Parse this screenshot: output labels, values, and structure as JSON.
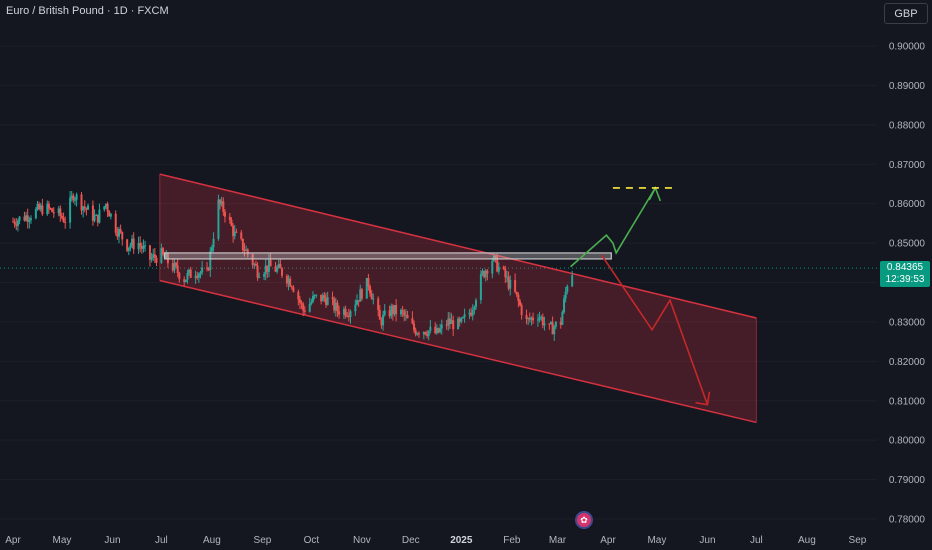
{
  "header": {
    "title": "Euro / British Pound · 1D · FXCM",
    "currency_button": "GBP"
  },
  "price_badge": {
    "price": "0.84365",
    "countdown": "12:39:53",
    "color": "#089981"
  },
  "event_icon": {
    "icon": "economic-event-icon"
  },
  "colors": {
    "background": "#141720",
    "up": "#26a69a",
    "down": "#ef5350",
    "channel": "#f23645",
    "zone": "#c8c8c8",
    "projection_up": "#4caf50",
    "projection_down": "#c62828",
    "target": "#ffeb3b"
  },
  "chart_data": {
    "type": "candlestick",
    "symbol": "Euro / British Pound",
    "interval": "1D",
    "source": "FXCM",
    "y_axis": {
      "min": 0.78,
      "max": 0.9,
      "ticks": [
        "0.90000",
        "0.89000",
        "0.88000",
        "0.87000",
        "0.86000",
        "0.85000",
        "0.84000",
        "0.83000",
        "0.82000",
        "0.81000",
        "0.80000",
        "0.79000",
        "0.78000"
      ],
      "side": "right"
    },
    "x_axis": {
      "ticks": [
        "Apr",
        "May",
        "Jun",
        "Jul",
        "Aug",
        "Sep",
        "Oct",
        "Nov",
        "Dec",
        "2025",
        "Feb",
        "Mar",
        "Apr",
        "May",
        "Jun",
        "Jul",
        "Aug",
        "Sep"
      ],
      "bold": [
        "2025"
      ]
    },
    "last_price": 0.84365,
    "closes": [
      {
        "d": "2024-04-01",
        "v": 0.8555
      },
      {
        "d": "2024-04-10",
        "v": 0.857
      },
      {
        "d": "2024-04-20",
        "v": 0.859
      },
      {
        "d": "2024-04-28",
        "v": 0.8575
      },
      {
        "d": "2024-05-03",
        "v": 0.856
      },
      {
        "d": "2024-05-08",
        "v": 0.8625
      },
      {
        "d": "2024-05-15",
        "v": 0.859
      },
      {
        "d": "2024-05-22",
        "v": 0.856
      },
      {
        "d": "2024-05-28",
        "v": 0.86
      },
      {
        "d": "2024-06-03",
        "v": 0.854
      },
      {
        "d": "2024-06-10",
        "v": 0.8495
      },
      {
        "d": "2024-06-17",
        "v": 0.85
      },
      {
        "d": "2024-06-24",
        "v": 0.846
      },
      {
        "d": "2024-07-01",
        "v": 0.847
      },
      {
        "d": "2024-07-08",
        "v": 0.844
      },
      {
        "d": "2024-07-15",
        "v": 0.841
      },
      {
        "d": "2024-07-22",
        "v": 0.843
      },
      {
        "d": "2024-07-29",
        "v": 0.842
      },
      {
        "d": "2024-08-05",
        "v": 0.86
      },
      {
        "d": "2024-08-09",
        "v": 0.858
      },
      {
        "d": "2024-08-15",
        "v": 0.852
      },
      {
        "d": "2024-08-22",
        "v": 0.848
      },
      {
        "d": "2024-08-29",
        "v": 0.843
      },
      {
        "d": "2024-09-05",
        "v": 0.844
      },
      {
        "d": "2024-09-12",
        "v": 0.843
      },
      {
        "d": "2024-09-19",
        "v": 0.84
      },
      {
        "d": "2024-09-26",
        "v": 0.833
      },
      {
        "d": "2024-10-03",
        "v": 0.836
      },
      {
        "d": "2024-10-10",
        "v": 0.836
      },
      {
        "d": "2024-10-17",
        "v": 0.833
      },
      {
        "d": "2024-10-24",
        "v": 0.833
      },
      {
        "d": "2024-10-31",
        "v": 0.837
      },
      {
        "d": "2024-11-05",
        "v": 0.84
      },
      {
        "d": "2024-11-12",
        "v": 0.83
      },
      {
        "d": "2024-11-19",
        "v": 0.833
      },
      {
        "d": "2024-11-26",
        "v": 0.832
      },
      {
        "d": "2024-12-03",
        "v": 0.828
      },
      {
        "d": "2024-12-10",
        "v": 0.828
      },
      {
        "d": "2024-12-17",
        "v": 0.827
      },
      {
        "d": "2024-12-24",
        "v": 0.83
      },
      {
        "d": "2024-12-31",
        "v": 0.829
      },
      {
        "d": "2025-01-07",
        "v": 0.833
      },
      {
        "d": "2025-01-14",
        "v": 0.842
      },
      {
        "d": "2025-01-20",
        "v": 0.846
      },
      {
        "d": "2025-01-27",
        "v": 0.842
      },
      {
        "d": "2025-02-03",
        "v": 0.837
      },
      {
        "d": "2025-02-10",
        "v": 0.83
      },
      {
        "d": "2025-02-17",
        "v": 0.832
      },
      {
        "d": "2025-02-24",
        "v": 0.828
      },
      {
        "d": "2025-03-03",
        "v": 0.83
      },
      {
        "d": "2025-03-07",
        "v": 0.84
      },
      {
        "d": "2025-03-11",
        "v": 0.8436
      }
    ],
    "channel": {
      "upper": [
        {
          "d": "2024-06-30",
          "v": 0.8675
        },
        {
          "d": "2025-07-01",
          "v": 0.831
        }
      ],
      "lower": [
        {
          "d": "2024-06-30",
          "v": 0.8405
        },
        {
          "d": "2025-07-01",
          "v": 0.8045
        }
      ]
    },
    "resistance_zone": {
      "from": "2024-07-03",
      "to": "2025-04-03",
      "low": 0.846,
      "high": 0.8475
    },
    "bullish_path": [
      {
        "d": "2025-03-09",
        "v": 0.844
      },
      {
        "d": "2025-03-31",
        "v": 0.852
      },
      {
        "d": "2025-04-04",
        "v": 0.85
      },
      {
        "d": "2025-04-06",
        "v": 0.8475
      },
      {
        "d": "2025-04-30",
        "v": 0.864
      }
    ],
    "bearish_path": [
      {
        "d": "2025-03-28",
        "v": 0.847
      },
      {
        "d": "2025-04-28",
        "v": 0.828
      },
      {
        "d": "2025-05-09",
        "v": 0.8355
      },
      {
        "d": "2025-06-01",
        "v": 0.809
      }
    ],
    "target_line": {
      "from": "2025-04-04",
      "to": "2025-05-11",
      "value": 0.864
    }
  }
}
